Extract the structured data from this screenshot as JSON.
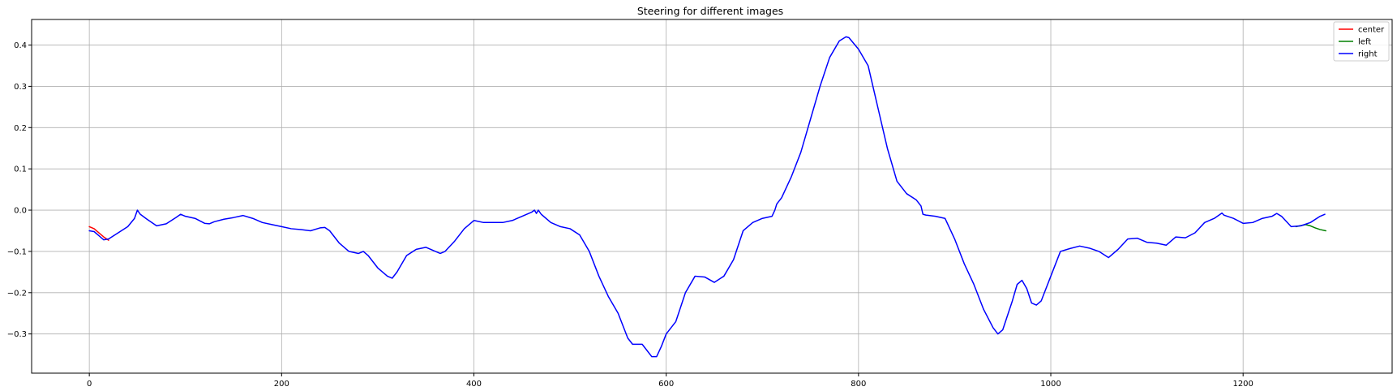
{
  "chart_data": {
    "type": "line",
    "title": "Steering for different images",
    "xlabel": "",
    "ylabel": "",
    "xlim": [
      -60,
      1355
    ],
    "ylim": [
      -0.395,
      0.462
    ],
    "x_ticks": [
      0,
      200,
      400,
      600,
      800,
      1000,
      1200
    ],
    "x_tick_labels": [
      "0",
      "200",
      "400",
      "600",
      "800",
      "1000",
      "1200"
    ],
    "y_ticks": [
      -0.3,
      -0.2,
      -0.1,
      0.0,
      0.1,
      0.2,
      0.3,
      0.4
    ],
    "y_tick_labels": [
      "−0.3",
      "−0.2",
      "−0.1",
      "0.0",
      "0.1",
      "0.2",
      "0.3",
      "0.4"
    ],
    "grid": true,
    "legend_position": "top-right",
    "series": [
      {
        "name": "center",
        "color": "#ff0000",
        "x": [
          0,
          5,
          10,
          15,
          20
        ],
        "y": [
          -0.04,
          -0.045,
          -0.055,
          -0.065,
          -0.073
        ]
      },
      {
        "name": "left",
        "color": "#008000",
        "x": [
          1255,
          1265,
          1270,
          1275,
          1280,
          1286
        ],
        "y": [
          -0.04,
          -0.035,
          -0.038,
          -0.043,
          -0.047,
          -0.05
        ]
      },
      {
        "name": "right",
        "color": "#0000ff",
        "x": [
          0,
          5,
          10,
          15,
          20,
          30,
          40,
          47,
          50,
          53,
          60,
          70,
          80,
          90,
          95,
          100,
          110,
          120,
          125,
          130,
          140,
          150,
          160,
          170,
          180,
          190,
          200,
          210,
          220,
          230,
          240,
          245,
          250,
          260,
          270,
          280,
          285,
          290,
          300,
          310,
          315,
          320,
          330,
          340,
          350,
          360,
          365,
          370,
          380,
          390,
          400,
          410,
          420,
          430,
          440,
          450,
          460,
          463,
          465,
          467,
          470,
          480,
          490,
          500,
          510,
          520,
          530,
          540,
          550,
          560,
          565,
          570,
          575,
          580,
          585,
          590,
          595,
          600,
          610,
          620,
          630,
          640,
          650,
          660,
          670,
          680,
          690,
          700,
          710,
          713,
          715,
          720,
          730,
          740,
          750,
          760,
          770,
          780,
          787,
          790,
          800,
          810,
          820,
          830,
          840,
          850,
          860,
          865,
          867,
          870,
          880,
          890,
          900,
          910,
          920,
          930,
          940,
          945,
          950,
          960,
          965,
          970,
          975,
          980,
          985,
          990,
          1000,
          1010,
          1020,
          1030,
          1040,
          1050,
          1060,
          1070,
          1080,
          1090,
          1100,
          1110,
          1120,
          1130,
          1140,
          1150,
          1160,
          1170,
          1175,
          1178,
          1180,
          1190,
          1200,
          1210,
          1220,
          1230,
          1235,
          1240,
          1250,
          1260,
          1270,
          1280,
          1285
        ],
        "y": [
          -0.05,
          -0.052,
          -0.062,
          -0.072,
          -0.07,
          -0.055,
          -0.04,
          -0.02,
          0.0,
          -0.01,
          -0.022,
          -0.038,
          -0.033,
          -0.018,
          -0.01,
          -0.015,
          -0.02,
          -0.032,
          -0.033,
          -0.028,
          -0.022,
          -0.018,
          -0.013,
          -0.02,
          -0.03,
          -0.035,
          -0.04,
          -0.045,
          -0.047,
          -0.05,
          -0.043,
          -0.042,
          -0.05,
          -0.08,
          -0.1,
          -0.105,
          -0.1,
          -0.11,
          -0.14,
          -0.16,
          -0.165,
          -0.15,
          -0.11,
          -0.095,
          -0.09,
          -0.1,
          -0.105,
          -0.1,
          -0.075,
          -0.045,
          -0.025,
          -0.03,
          -0.03,
          -0.03,
          -0.025,
          -0.015,
          -0.005,
          0.0,
          -0.008,
          0.0,
          -0.01,
          -0.03,
          -0.04,
          -0.045,
          -0.06,
          -0.1,
          -0.16,
          -0.21,
          -0.25,
          -0.31,
          -0.325,
          -0.325,
          -0.325,
          -0.34,
          -0.355,
          -0.355,
          -0.33,
          -0.3,
          -0.27,
          -0.2,
          -0.16,
          -0.162,
          -0.175,
          -0.16,
          -0.12,
          -0.05,
          -0.03,
          -0.02,
          -0.015,
          0.0,
          0.015,
          0.03,
          0.08,
          0.14,
          0.22,
          0.3,
          0.37,
          0.41,
          0.42,
          0.418,
          0.39,
          0.35,
          0.25,
          0.15,
          0.07,
          0.04,
          0.025,
          0.01,
          -0.01,
          -0.012,
          -0.015,
          -0.02,
          -0.07,
          -0.13,
          -0.18,
          -0.24,
          -0.285,
          -0.3,
          -0.29,
          -0.22,
          -0.18,
          -0.17,
          -0.19,
          -0.225,
          -0.23,
          -0.22,
          -0.16,
          -0.1,
          -0.093,
          -0.087,
          -0.092,
          -0.1,
          -0.115,
          -0.095,
          -0.07,
          -0.068,
          -0.078,
          -0.08,
          -0.085,
          -0.065,
          -0.067,
          -0.055,
          -0.03,
          -0.02,
          -0.012,
          -0.007,
          -0.012,
          -0.02,
          -0.032,
          -0.03,
          -0.02,
          -0.015,
          -0.008,
          -0.015,
          -0.04,
          -0.038,
          -0.03,
          -0.015,
          -0.01
        ]
      }
    ]
  }
}
